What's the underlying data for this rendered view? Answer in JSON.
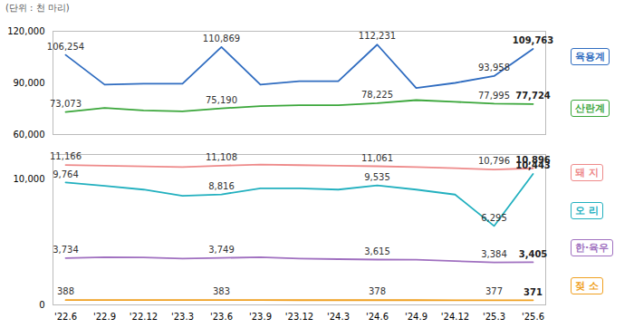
{
  "chart_data": [
    {
      "type": "line",
      "ylabel": "(단위 : 천 마리)",
      "categories": [
        "'22.6",
        "'22.9",
        "'22.12",
        "'23.3",
        "'23.6",
        "'23.9",
        "'23.12",
        "'24.3",
        "'24.6",
        "'24.9",
        "'24.12",
        "'25.3",
        "'25.6"
      ],
      "ylim": [
        60000,
        120000
      ],
      "yticks": [
        {
          "value": 60000,
          "label": "60,000"
        },
        {
          "value": 90000,
          "label": "90,000"
        },
        {
          "value": 120000,
          "label": "120,000"
        }
      ],
      "tick_labels": "y",
      "series": [
        {
          "name": "육용계",
          "color": "#2f6cc0",
          "values": [
            106254,
            89000,
            89500,
            89500,
            110869,
            89000,
            91000,
            91000,
            112231,
            87000,
            90000,
            93958,
            109763
          ],
          "value_labels": [
            "106,254",
            null,
            null,
            null,
            "110,869",
            null,
            null,
            null,
            "112,231",
            null,
            null,
            "93,958",
            "109,763"
          ]
        },
        {
          "name": "산란계",
          "color": "#3aa63a",
          "values": [
            73073,
            75500,
            74000,
            73500,
            75190,
            76500,
            77000,
            77000,
            78225,
            80000,
            79000,
            77995,
            77724
          ],
          "value_labels": [
            "73,073",
            null,
            null,
            null,
            "75,190",
            null,
            null,
            null,
            "78,225",
            null,
            null,
            "77,995",
            "77,724"
          ]
        }
      ]
    },
    {
      "type": "line",
      "categories": [
        "'22.6",
        "'22.9",
        "'22.12",
        "'23.3",
        "'23.6",
        "'23.9",
        "'23.12",
        "'24.3",
        "'24.6",
        "'24.9",
        "'24.12",
        "'25.3",
        "'25.6"
      ],
      "ylim": [
        0,
        12000
      ],
      "yticks": [
        0,
        {
          "value": 10000,
          "label": "10,000"
        }
      ],
      "series": [
        {
          "name": "돼 지",
          "color": "#ee8a8a",
          "values": [
            11166,
            11100,
            11050,
            11000,
            11108,
            11200,
            11150,
            11100,
            11061,
            11000,
            10900,
            10796,
            10896
          ],
          "value_labels": [
            "11,166",
            null,
            null,
            null,
            "11,108",
            null,
            null,
            null,
            "11,061",
            null,
            null,
            "10,796",
            "10,896"
          ]
        },
        {
          "name": "오 리",
          "color": "#22b0bf",
          "values": [
            9764,
            9500,
            9200,
            8700,
            8816,
            9300,
            9300,
            9200,
            9535,
            9200,
            8800,
            6295,
            10443
          ],
          "value_labels": [
            "9,764",
            null,
            null,
            null,
            "8,816",
            null,
            null,
            null,
            "9,535",
            null,
            null,
            "6,295",
            "10,443"
          ]
        },
        {
          "name": "한·육우",
          "color": "#a070c0",
          "values": [
            3734,
            3800,
            3780,
            3700,
            3749,
            3800,
            3700,
            3650,
            3615,
            3600,
            3500,
            3384,
            3405
          ],
          "value_labels": [
            "3,734",
            null,
            null,
            null,
            "3,749",
            null,
            null,
            null,
            "3,615",
            null,
            null,
            "3,384",
            "3,405"
          ]
        },
        {
          "name": "젖 소",
          "color": "#f0a020",
          "values": [
            388,
            387,
            385,
            384,
            383,
            382,
            381,
            380,
            378,
            378,
            377,
            377,
            371
          ],
          "value_labels": [
            "388",
            null,
            null,
            null,
            "383",
            null,
            null,
            null,
            "378",
            null,
            null,
            "377",
            "371"
          ]
        }
      ]
    }
  ]
}
